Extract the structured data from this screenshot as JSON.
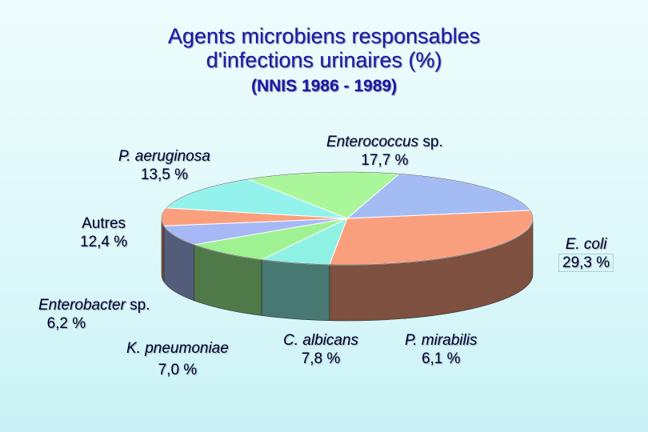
{
  "title": {
    "line1": "Agents microbiens responsables",
    "line2": "d'infections urinaires (%)",
    "line3": "(NNIS 1986 - 1989)"
  },
  "chart_data": {
    "type": "pie",
    "three_d": true,
    "slices": [
      {
        "name": "E. coli",
        "value": 29.3,
        "value_label": "29,3 %",
        "color": "#fa9f7d"
      },
      {
        "name": "P. mirabilis",
        "value": 6.1,
        "value_label": "6,1 %",
        "color": "#8ff0e4"
      },
      {
        "name": "C. albicans",
        "value": 7.8,
        "value_label": "7,8 %",
        "color": "#9ff291"
      },
      {
        "name": "K. pneumoniae",
        "value": 7.0,
        "value_label": "7,0 %",
        "color": "#a6b8f5"
      },
      {
        "name": "Enterobacter",
        "name_suffix": " sp.",
        "value": 6.2,
        "value_label": "6,2 %",
        "color": "#fa9f7d"
      },
      {
        "name": "Autres",
        "value": 12.4,
        "value_label": "12,4 %",
        "color": "#93f2ec"
      },
      {
        "name": "P. aeruginosa",
        "value": 13.5,
        "value_label": "13,5 %",
        "color": "#a9f79a"
      },
      {
        "name": "Enterococcus",
        "name_suffix": " sp.",
        "value": 17.7,
        "value_label": "17,7 %",
        "color": "#a3bcf4"
      }
    ]
  }
}
